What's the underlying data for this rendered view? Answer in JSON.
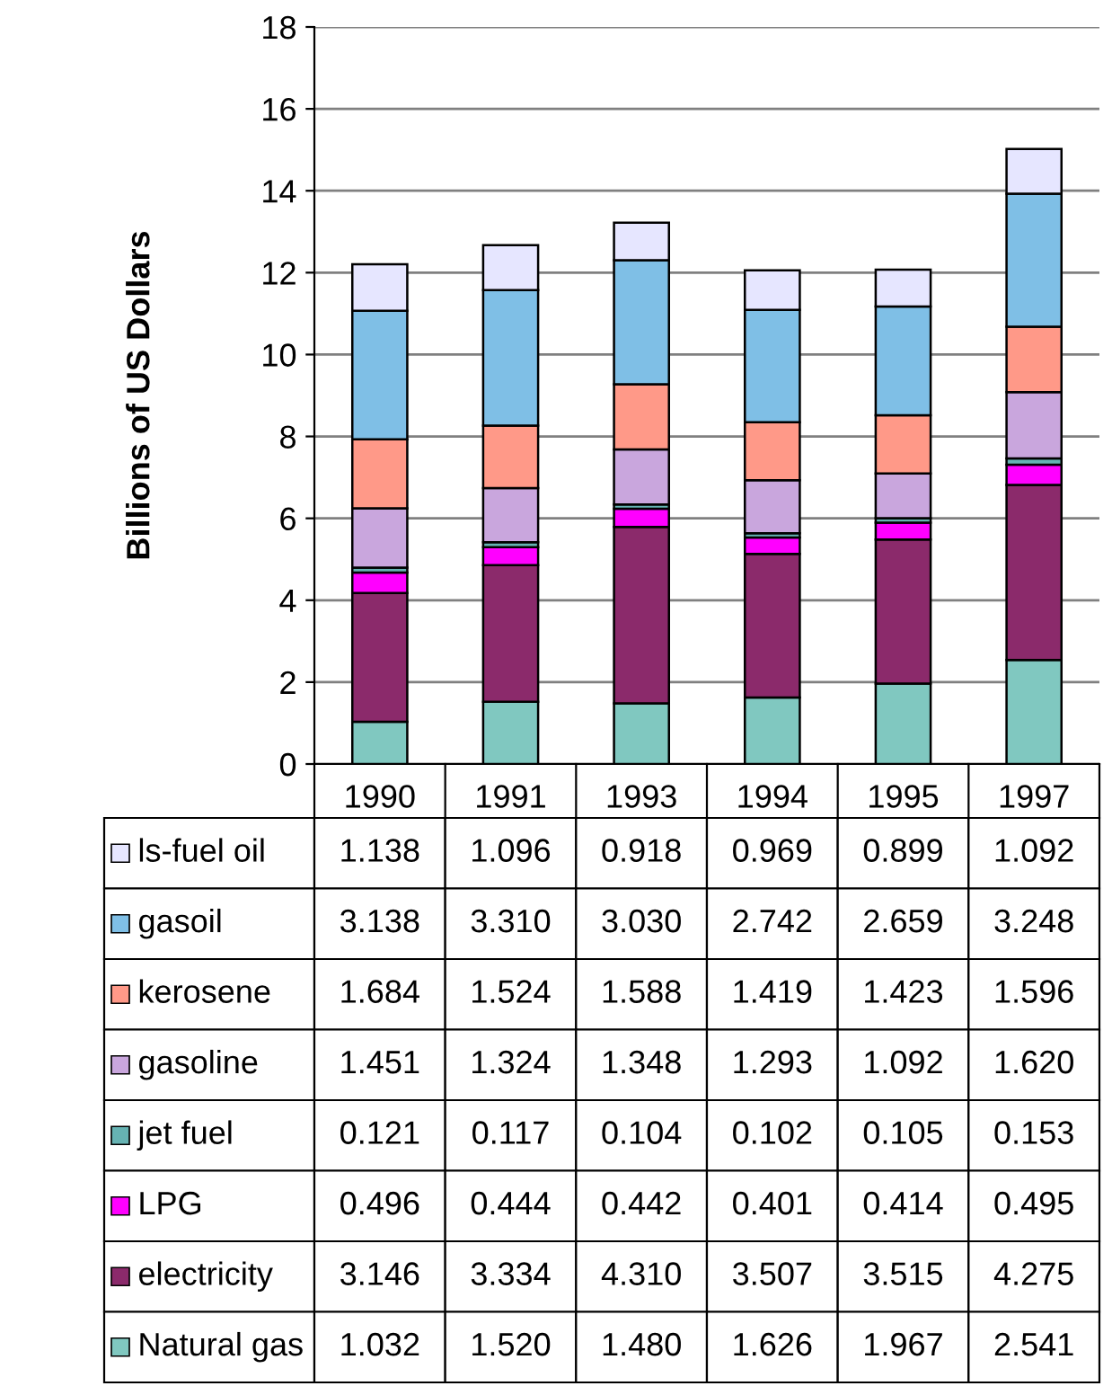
{
  "chart_data": {
    "type": "bar",
    "stacked": true,
    "ylabel": "Billions of US Dollars",
    "categories": [
      "1990",
      "1991",
      "1993",
      "1994",
      "1995",
      "1997"
    ],
    "series": [
      {
        "name": "Natural gas",
        "color": "#80c8c0",
        "values": [
          1.032,
          1.52,
          1.48,
          1.626,
          1.967,
          2.541
        ],
        "value_labels": [
          "1.032",
          "1.520",
          "1.480",
          "1.626",
          "1.967",
          "2.541"
        ]
      },
      {
        "name": "electricity",
        "color": "#8b2a6b",
        "values": [
          3.146,
          3.334,
          4.31,
          3.507,
          3.515,
          4.275
        ],
        "value_labels": [
          "3.146",
          "3.334",
          "4.310",
          "3.507",
          "3.515",
          "4.275"
        ]
      },
      {
        "name": "LPG",
        "color": "#ff00ff",
        "values": [
          0.496,
          0.444,
          0.442,
          0.401,
          0.414,
          0.495
        ],
        "value_labels": [
          "0.496",
          "0.444",
          "0.442",
          "0.401",
          "0.414",
          "0.495"
        ]
      },
      {
        "name": "jet fuel",
        "color": "#66b3b3",
        "values": [
          0.121,
          0.117,
          0.104,
          0.102,
          0.105,
          0.153
        ],
        "value_labels": [
          "0.121",
          "0.117",
          "0.104",
          "0.102",
          "0.105",
          "0.153"
        ]
      },
      {
        "name": "gasoline",
        "color": "#c9a6dd",
        "values": [
          1.451,
          1.324,
          1.348,
          1.293,
          1.092,
          1.62
        ],
        "value_labels": [
          "1.451",
          "1.324",
          "1.348",
          "1.293",
          "1.092",
          "1.620"
        ]
      },
      {
        "name": "kerosene",
        "color": "#ff9988",
        "values": [
          1.684,
          1.524,
          1.588,
          1.419,
          1.423,
          1.596
        ],
        "value_labels": [
          "1.684",
          "1.524",
          "1.588",
          "1.419",
          "1.423",
          "1.596"
        ]
      },
      {
        "name": "gasoil",
        "color": "#7fbfe6",
        "values": [
          3.138,
          3.31,
          3.03,
          2.742,
          2.659,
          3.248
        ],
        "value_labels": [
          "3.138",
          "3.310",
          "3.030",
          "2.742",
          "2.659",
          "3.248"
        ]
      },
      {
        "name": "ls-fuel oil",
        "color": "#e6e6ff",
        "values": [
          1.138,
          1.096,
          0.918,
          0.969,
          0.899,
          1.092
        ],
        "value_labels": [
          "1.138",
          "1.096",
          "0.918",
          "0.969",
          "0.899",
          "1.092"
        ]
      }
    ],
    "ylim": [
      0,
      18
    ],
    "yticks": [
      0,
      2,
      4,
      6,
      8,
      10,
      12,
      14,
      16,
      18
    ],
    "grid": "y",
    "legend": "bottom"
  }
}
